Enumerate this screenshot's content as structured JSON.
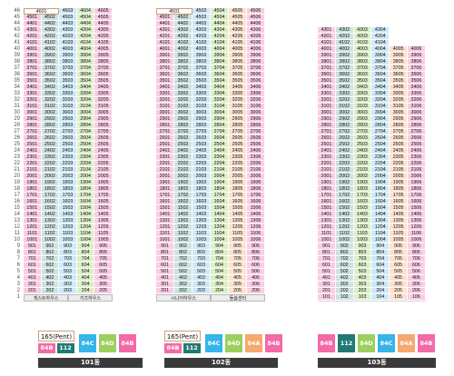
{
  "floors": [
    "1",
    "2",
    "3",
    "4",
    "5",
    "6",
    "7",
    "8",
    "9",
    "10",
    "11",
    "12",
    "13",
    "14",
    "15",
    "16",
    "17",
    "18",
    "19",
    "20",
    "21",
    "22",
    "23",
    "24",
    "25",
    "26",
    "27",
    "28",
    "29",
    "30",
    "31",
    "32",
    "33",
    "34",
    "35",
    "36",
    "37",
    "38",
    "39",
    "40",
    "41",
    "42",
    "43",
    "44",
    "45",
    "46"
  ],
  "colors": {
    "84A": "#f7a86f",
    "84B": "#f46aa8",
    "84C": "#36b4ec",
    "84D": "#9ccf5e",
    "112": "#1f7a74",
    "pent_border": "#c9a07a",
    "cell_84A": "#fce2ce",
    "cell_84B": "#f9cde4",
    "cell_84C": "#cfe9f7",
    "cell_84D": "#dcefc8",
    "cell_112": "#cde3df",
    "cell_pent": "#f4f4f4",
    "label_bg": "#3a3a3a"
  },
  "buildings": [
    {
      "label": "101동",
      "pent_label": "165(Pent)",
      "top_floor": 45,
      "bottom_labels": [
        "게스트하우스",
        "키즈하우스"
      ],
      "lines": [
        {
          "line": "01",
          "type": "84B"
        },
        {
          "line": "02",
          "type": "112"
        },
        {
          "line": "03",
          "type": "84C"
        },
        {
          "line": "04",
          "type": "84D"
        },
        {
          "line": "05",
          "type": "84B"
        }
      ],
      "penthouse": [
        {
          "label": "4601",
          "type": "pent"
        },
        {
          "label": "4603",
          "type": "84C"
        },
        {
          "label": "4604",
          "type": "84D"
        },
        {
          "label": "4605",
          "type": "84B"
        }
      ],
      "legend_top": [
        {
          "text": "165(Pent)",
          "kind": "pent"
        }
      ],
      "legend_bottom": [
        {
          "text": "84B",
          "type": "84B"
        },
        {
          "text": "112",
          "type": "112"
        }
      ],
      "legend_side": [
        {
          "text": "84C",
          "type": "84C"
        },
        {
          "text": "84D",
          "type": "84D"
        },
        {
          "text": "84B",
          "type": "84B"
        }
      ]
    },
    {
      "label": "102동",
      "pent_label": "165(Pent)",
      "top_floor": 45,
      "bottom_labels": [
        "시니어하우스",
        "돌봄센터"
      ],
      "lines": [
        {
          "line": "01",
          "type": "84B"
        },
        {
          "line": "02",
          "type": "112"
        },
        {
          "line": "03",
          "type": "84C"
        },
        {
          "line": "04",
          "type": "84D"
        },
        {
          "line": "05",
          "type": "84A"
        },
        {
          "line": "06",
          "type": "84B"
        }
      ],
      "penthouse": [
        {
          "label": "4501",
          "type": "pent"
        },
        {
          "label": "4503",
          "type": "84C"
        },
        {
          "label": "4504",
          "type": "84D"
        },
        {
          "label": "4505",
          "type": "84A"
        },
        {
          "label": "4506",
          "type": "84B"
        }
      ],
      "legend_top": [
        {
          "text": "165(Pent)",
          "kind": "pent"
        }
      ],
      "legend_bottom": [
        {
          "text": "84B",
          "type": "84B"
        },
        {
          "text": "112",
          "type": "112"
        }
      ],
      "legend_side": [
        {
          "text": "84C",
          "type": "84C"
        },
        {
          "text": "84D",
          "type": "84D"
        },
        {
          "text": "84A",
          "type": "84A"
        },
        {
          "text": "84B",
          "type": "84B"
        }
      ]
    },
    {
      "label": "103동",
      "top_floor": 43,
      "bottom_labels": [],
      "lines": [
        {
          "line": "01",
          "type": "84B"
        },
        {
          "line": "02",
          "type": "112"
        },
        {
          "line": "03",
          "type": "84D"
        },
        {
          "line": "04",
          "type": "84C"
        },
        {
          "line": "05",
          "type": "84A"
        },
        {
          "line": "06",
          "type": "84B"
        }
      ],
      "upper_top": {
        "04": 43,
        "05": 40,
        "06": 40
      },
      "penthouse": [],
      "legend_side": [
        {
          "text": "84B",
          "type": "84B"
        },
        {
          "text": "112",
          "type": "112"
        },
        {
          "text": "84D",
          "type": "84D"
        },
        {
          "text": "84C",
          "type": "84C"
        },
        {
          "text": "84A",
          "type": "84A"
        },
        {
          "text": "84B",
          "type": "84B"
        }
      ]
    }
  ]
}
